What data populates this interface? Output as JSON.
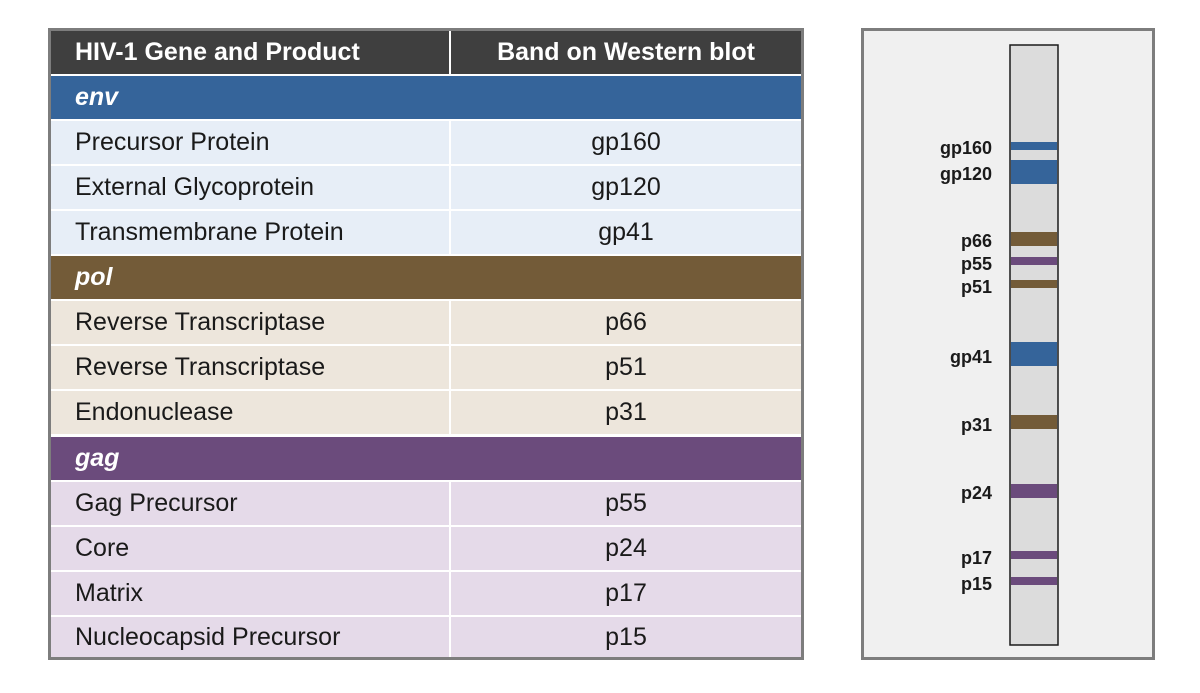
{
  "table": {
    "headers": [
      "HIV-1 Gene and Product",
      "Band on Western blot"
    ],
    "groups": [
      {
        "gene": "env",
        "color": "#35649a",
        "row_bg": "#e7eef7",
        "rows": [
          {
            "product": "Precursor Protein",
            "band": "gp160"
          },
          {
            "product": "External Glycoprotein",
            "band": "gp120"
          },
          {
            "product": "Transmembrane Protein",
            "band": "gp41"
          }
        ]
      },
      {
        "gene": "pol",
        "color": "#735b38",
        "row_bg": "#ede6dc",
        "rows": [
          {
            "product": "Reverse Transcriptase",
            "band": "p66"
          },
          {
            "product": "Reverse Transcriptase",
            "band": "p51"
          },
          {
            "product": "Endonuclease",
            "band": "p31"
          }
        ]
      },
      {
        "gene": "gag",
        "color": "#6b4b7c",
        "row_bg": "#e5dae9",
        "rows": [
          {
            "product": "Gag Precursor",
            "band": "p55"
          },
          {
            "product": "Core",
            "band": "p24"
          },
          {
            "product": "Matrix",
            "band": "p17"
          },
          {
            "product": "Nucleocapsid Precursor",
            "band": "p15"
          }
        ]
      }
    ]
  },
  "blot": {
    "strip_color": "#dcdcdc",
    "bands": [
      {
        "label": "gp160",
        "gene": "env",
        "color": "#35649a",
        "thickness": "thin"
      },
      {
        "label": "gp120",
        "gene": "env",
        "color": "#35649a",
        "thickness": "thick"
      },
      {
        "label": "p66",
        "gene": "pol",
        "color": "#735b38",
        "thickness": "medium"
      },
      {
        "label": "p55",
        "gene": "gag",
        "color": "#6b4b7c",
        "thickness": "thin"
      },
      {
        "label": "p51",
        "gene": "pol",
        "color": "#735b38",
        "thickness": "thin"
      },
      {
        "label": "gp41",
        "gene": "env",
        "color": "#35649a",
        "thickness": "thick"
      },
      {
        "label": "p31",
        "gene": "pol",
        "color": "#735b38",
        "thickness": "medium"
      },
      {
        "label": "p24",
        "gene": "gag",
        "color": "#6b4b7c",
        "thickness": "medium"
      },
      {
        "label": "p17",
        "gene": "gag",
        "color": "#6b4b7c",
        "thickness": "thin"
      },
      {
        "label": "p15",
        "gene": "gag",
        "color": "#6b4b7c",
        "thickness": "thin"
      }
    ]
  }
}
